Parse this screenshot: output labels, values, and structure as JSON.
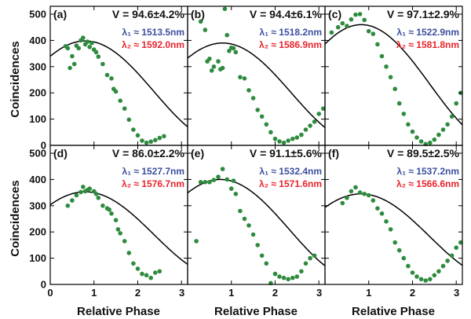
{
  "chart_data": {
    "type": "scatter",
    "ylabel": "Coincidences",
    "xlabel": "Relative Phase",
    "xlim": [
      0,
      3.14
    ],
    "ylim": [
      0,
      530
    ],
    "x_ticks": [
      "0",
      "1",
      "2",
      "3"
    ],
    "y_ticks": [
      "0",
      "100",
      "200",
      "300",
      "400",
      "500"
    ],
    "point_color": "#2e8b3e",
    "fit_color": "#000000",
    "lambda1_color": "#3c4fa0",
    "lambda2_color": "#e8242c",
    "panels": [
      {
        "label": "(a)",
        "visibility": "V = 94.6±4.2%",
        "lambda1": "λ₁ ≈ 1513.5nm",
        "lambda2": "λ₂ ≈ 1592.0nm",
        "fit": {
          "mean": 205,
          "amp": 193,
          "peak": 0.8
        },
        "points": [
          [
            0.35,
            378
          ],
          [
            0.4,
            370
          ],
          [
            0.45,
            295
          ],
          [
            0.5,
            340
          ],
          [
            0.55,
            310
          ],
          [
            0.6,
            380
          ],
          [
            0.65,
            370
          ],
          [
            0.7,
            400
          ],
          [
            0.75,
            410
          ],
          [
            0.8,
            385
          ],
          [
            0.85,
            395
          ],
          [
            0.9,
            375
          ],
          [
            0.95,
            390
          ],
          [
            1.0,
            365
          ],
          [
            1.05,
            355
          ],
          [
            1.1,
            338
          ],
          [
            1.2,
            310
          ],
          [
            1.3,
            268
          ],
          [
            1.4,
            255
          ],
          [
            1.45,
            215
          ],
          [
            1.5,
            205
          ],
          [
            1.6,
            170
          ],
          [
            1.7,
            140
          ],
          [
            1.8,
            98
          ],
          [
            1.9,
            60
          ],
          [
            2.0,
            38
          ],
          [
            2.1,
            18
          ],
          [
            2.2,
            10
          ],
          [
            2.3,
            14
          ],
          [
            2.4,
            20
          ],
          [
            2.5,
            28
          ],
          [
            2.6,
            35
          ]
        ]
      },
      {
        "label": "(b)",
        "visibility": "V = 94.4±6.1%",
        "lambda1": "λ₁ ≈ 1518.2nm",
        "lambda2": "λ₂ ≈ 1586.9nm",
        "fit": {
          "mean": 200,
          "amp": 190,
          "peak": 0.8
        },
        "points": [
          [
            0.3,
            472
          ],
          [
            0.4,
            440
          ],
          [
            0.45,
            320
          ],
          [
            0.5,
            330
          ],
          [
            0.55,
            285
          ],
          [
            0.6,
            300
          ],
          [
            0.7,
            320
          ],
          [
            0.75,
            290
          ],
          [
            0.8,
            295
          ],
          [
            0.85,
            520
          ],
          [
            0.9,
            420
          ],
          [
            0.95,
            360
          ],
          [
            1.0,
            372
          ],
          [
            1.05,
            370
          ],
          [
            1.1,
            355
          ],
          [
            1.2,
            260
          ],
          [
            1.3,
            255
          ],
          [
            1.4,
            210
          ],
          [
            1.5,
            180
          ],
          [
            1.6,
            135
          ],
          [
            1.7,
            110
          ],
          [
            1.8,
            80
          ],
          [
            1.9,
            50
          ],
          [
            2.0,
            25
          ],
          [
            2.1,
            15
          ],
          [
            2.2,
            10
          ],
          [
            2.3,
            18
          ],
          [
            2.4,
            25
          ],
          [
            2.5,
            30
          ],
          [
            2.6,
            40
          ],
          [
            2.7,
            60
          ],
          [
            2.8,
            75
          ],
          [
            2.9,
            90
          ],
          [
            3.0,
            120
          ],
          [
            3.1,
            140
          ]
        ]
      },
      {
        "label": "(c)",
        "visibility": "V = 97.1±2.9%",
        "lambda1": "λ₁ ≈ 1522.9nm",
        "lambda2": "λ₂ ≈ 1581.8nm",
        "fit": {
          "mean": 232,
          "amp": 228,
          "peak": 0.83
        },
        "points": [
          [
            0.15,
            430
          ],
          [
            0.3,
            450
          ],
          [
            0.4,
            465
          ],
          [
            0.5,
            455
          ],
          [
            0.6,
            480
          ],
          [
            0.7,
            498
          ],
          [
            0.8,
            500
          ],
          [
            0.9,
            478
          ],
          [
            1.0,
            435
          ],
          [
            1.1,
            425
          ],
          [
            1.2,
            385
          ],
          [
            1.3,
            340
          ],
          [
            1.4,
            300
          ],
          [
            1.5,
            260
          ],
          [
            1.6,
            215
          ],
          [
            1.7,
            160
          ],
          [
            1.8,
            120
          ],
          [
            1.9,
            80
          ],
          [
            2.0,
            52
          ],
          [
            2.1,
            30
          ],
          [
            2.2,
            15
          ],
          [
            2.3,
            5
          ],
          [
            2.4,
            10
          ],
          [
            2.5,
            22
          ],
          [
            2.6,
            40
          ],
          [
            2.7,
            60
          ],
          [
            2.8,
            80
          ],
          [
            2.9,
            110
          ],
          [
            3.0,
            160
          ],
          [
            3.1,
            200
          ]
        ]
      },
      {
        "label": "(d)",
        "visibility": "V = 86.0±2.2%",
        "lambda1": "λ₁ ≈ 1527.7nm",
        "lambda2": "λ₂ ≈ 1576.7nm",
        "fit": {
          "mean": 190,
          "amp": 163,
          "peak": 0.8
        },
        "points": [
          [
            0.4,
            300
          ],
          [
            0.5,
            320
          ],
          [
            0.6,
            340
          ],
          [
            0.7,
            352
          ],
          [
            0.75,
            372
          ],
          [
            0.8,
            355
          ],
          [
            0.85,
            360
          ],
          [
            0.9,
            365
          ],
          [
            1.0,
            355
          ],
          [
            1.05,
            345
          ],
          [
            1.1,
            330
          ],
          [
            1.2,
            300
          ],
          [
            1.3,
            290
          ],
          [
            1.35,
            285
          ],
          [
            1.4,
            270
          ],
          [
            1.5,
            245
          ],
          [
            1.55,
            210
          ],
          [
            1.6,
            195
          ],
          [
            1.7,
            165
          ],
          [
            1.8,
            120
          ],
          [
            1.9,
            80
          ],
          [
            2.0,
            60
          ],
          [
            2.1,
            40
          ],
          [
            2.2,
            35
          ],
          [
            2.3,
            25
          ],
          [
            2.4,
            45
          ],
          [
            2.5,
            50
          ]
        ]
      },
      {
        "label": "(e)",
        "visibility": "V = 91.1±5.6%",
        "lambda1": "λ₁ ≈ 1532.4nm",
        "lambda2": "λ₂ ≈ 1571.6nm",
        "fit": {
          "mean": 210,
          "amp": 190,
          "peak": 0.75
        },
        "points": [
          [
            0.2,
            165
          ],
          [
            0.3,
            390
          ],
          [
            0.4,
            390
          ],
          [
            0.5,
            390
          ],
          [
            0.6,
            398
          ],
          [
            0.7,
            410
          ],
          [
            0.8,
            440
          ],
          [
            0.9,
            400
          ],
          [
            1.0,
            365
          ],
          [
            1.05,
            395
          ],
          [
            1.1,
            345
          ],
          [
            1.2,
            280
          ],
          [
            1.3,
            250
          ],
          [
            1.4,
            225
          ],
          [
            1.5,
            190
          ],
          [
            1.6,
            150
          ],
          [
            1.7,
            110
          ],
          [
            1.8,
            80
          ],
          [
            1.9,
            5
          ],
          [
            2.0,
            40
          ],
          [
            2.1,
            30
          ],
          [
            2.2,
            25
          ],
          [
            2.3,
            20
          ],
          [
            2.4,
            25
          ],
          [
            2.5,
            30
          ],
          [
            2.6,
            50
          ],
          [
            2.7,
            80
          ],
          [
            2.8,
            100
          ],
          [
            2.9,
            110
          ]
        ]
      },
      {
        "label": "(f)",
        "visibility": "V = 89.5±2.5%",
        "lambda1": "λ₁ ≈ 1537.2nm",
        "lambda2": "λ₂ ≈ 1566.6nm",
        "fit": {
          "mean": 183,
          "amp": 162,
          "peak": 0.82
        },
        "points": [
          [
            0.4,
            310
          ],
          [
            0.5,
            330
          ],
          [
            0.6,
            355
          ],
          [
            0.7,
            370
          ],
          [
            0.8,
            350
          ],
          [
            0.9,
            345
          ],
          [
            1.0,
            340
          ],
          [
            1.1,
            320
          ],
          [
            1.2,
            290
          ],
          [
            1.3,
            270
          ],
          [
            1.4,
            240
          ],
          [
            1.5,
            210
          ],
          [
            1.6,
            160
          ],
          [
            1.7,
            130
          ],
          [
            1.8,
            100
          ],
          [
            1.9,
            70
          ],
          [
            2.0,
            45
          ],
          [
            2.1,
            30
          ],
          [
            2.2,
            20
          ],
          [
            2.3,
            15
          ],
          [
            2.4,
            20
          ],
          [
            2.5,
            35
          ],
          [
            2.6,
            50
          ],
          [
            2.7,
            70
          ],
          [
            2.8,
            90
          ],
          [
            2.9,
            110
          ],
          [
            3.0,
            140
          ],
          [
            3.1,
            160
          ]
        ]
      }
    ]
  }
}
